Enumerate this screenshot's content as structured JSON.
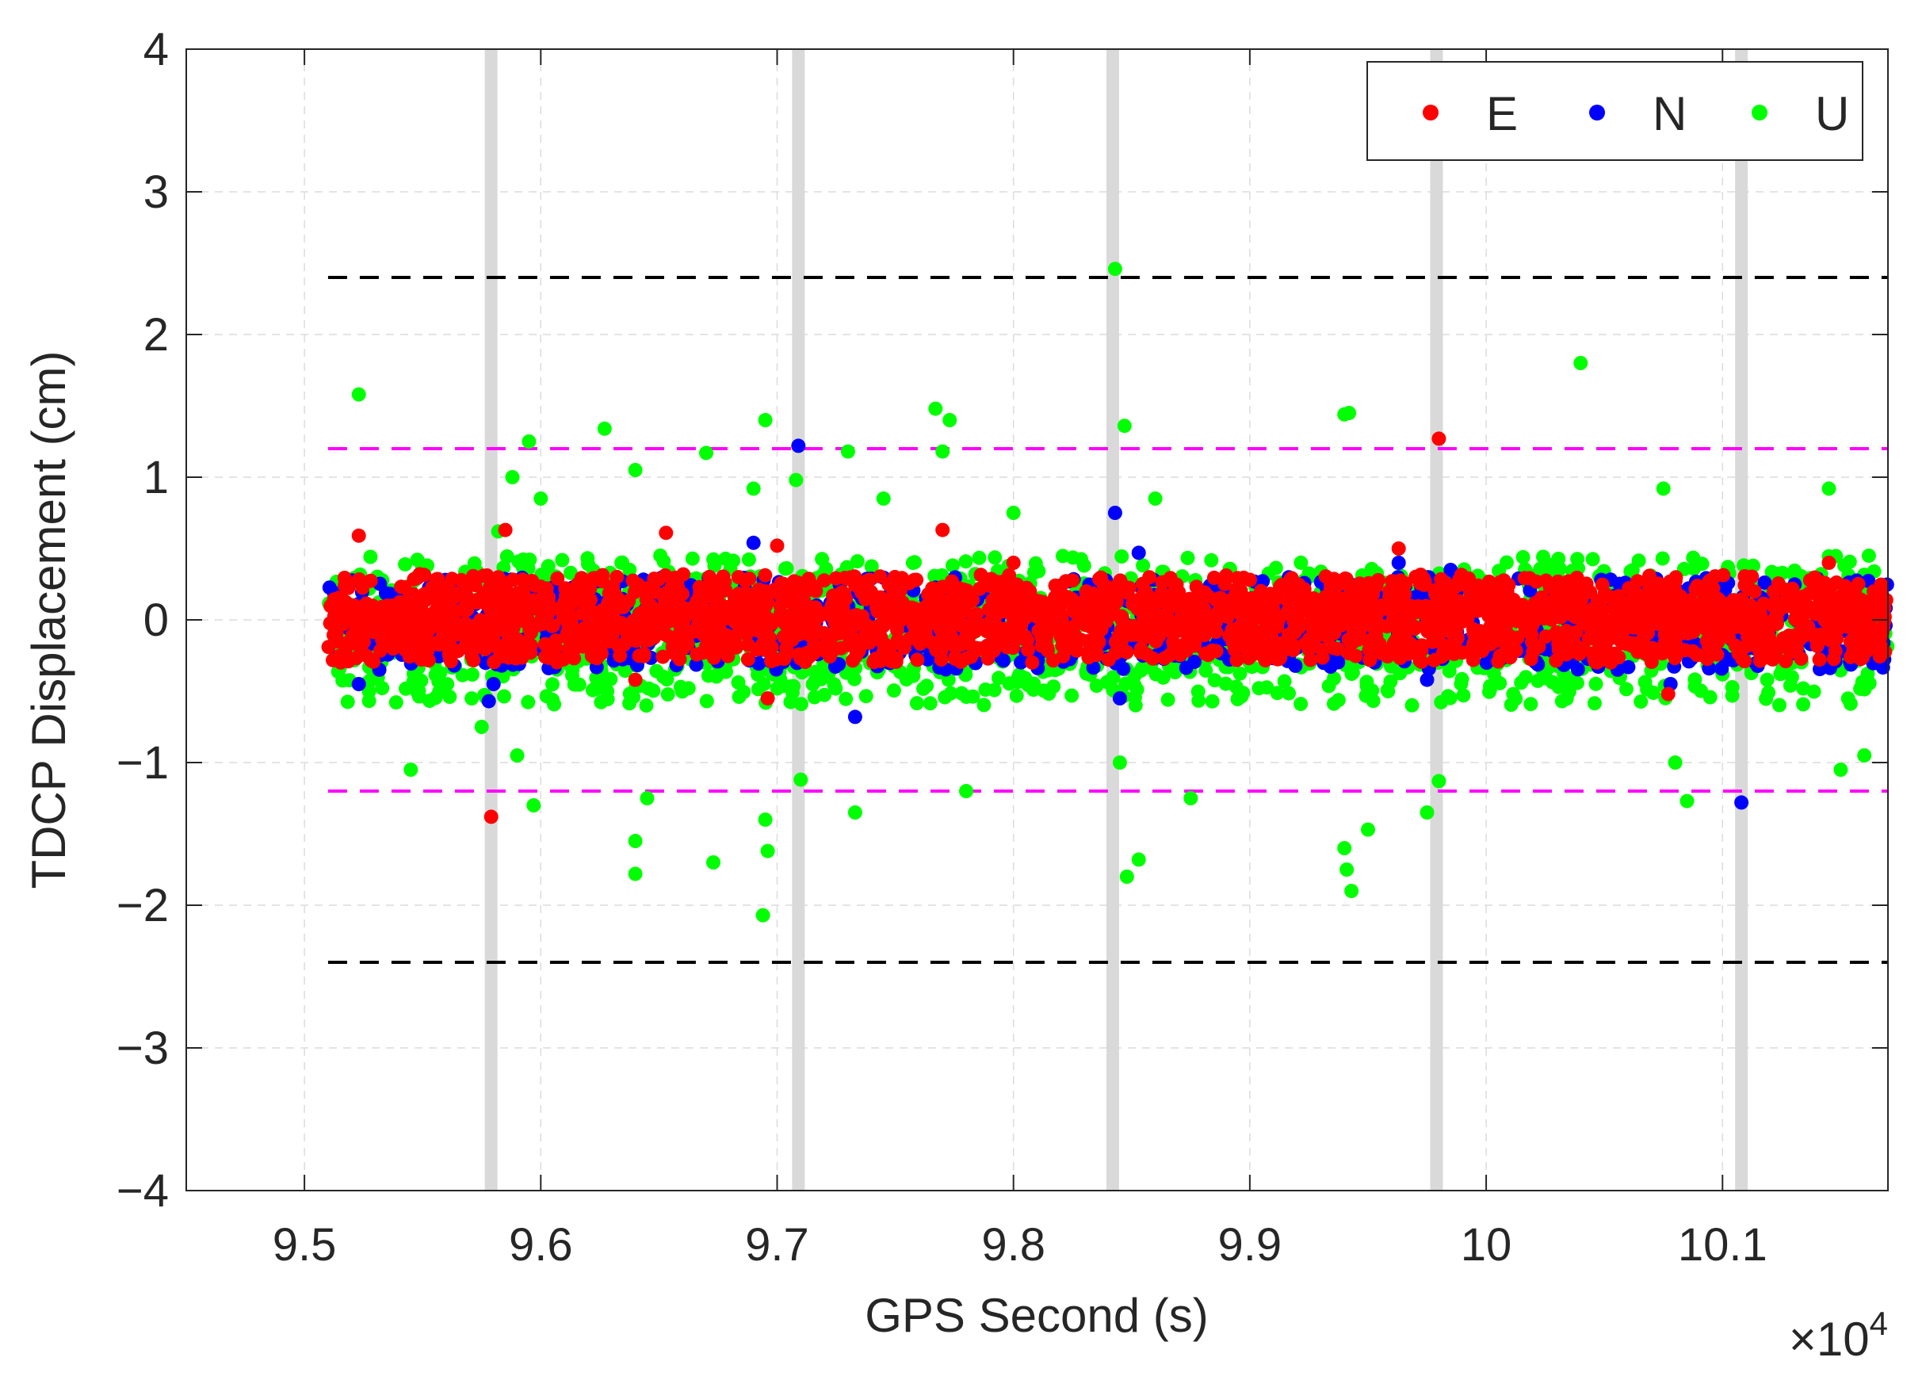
{
  "chart_data": {
    "type": "scatter",
    "title": "",
    "xlabel": "GPS Second (s)",
    "ylabel": "TDCP Displacement (cm)",
    "x_exponent_label": "×10",
    "x_exponent_power": "4",
    "x_scale_factor": 10000,
    "xlim": [
      9.45,
      10.17
    ],
    "ylim": [
      -4,
      4
    ],
    "x_ticks": [
      9.5,
      9.6,
      9.7,
      9.8,
      9.9,
      10,
      10.1
    ],
    "x_tick_labels": [
      "9.5",
      "9.6",
      "9.7",
      "9.8",
      "9.9",
      "10",
      "10.1"
    ],
    "y_ticks": [
      -4,
      -3,
      -2,
      -1,
      0,
      1,
      2,
      3,
      4
    ],
    "y_tick_labels": [
      "−4",
      "−3",
      "−2",
      "−1",
      "0",
      "1",
      "2",
      "3",
      "4"
    ],
    "grid": true,
    "legend_position": "top-right",
    "x_range_of_data": [
      9.51,
      10.17
    ],
    "series": [
      {
        "name": "U",
        "color": "#00ff00",
        "typical_band": [
          -0.6,
          0.45
        ],
        "outliers": [
          [
            9.523,
            1.58
          ],
          [
            9.545,
            -1.05
          ],
          [
            9.575,
            -0.75
          ],
          [
            9.582,
            0.62
          ],
          [
            9.588,
            1.0
          ],
          [
            9.59,
            -0.95
          ],
          [
            9.595,
            1.25
          ],
          [
            9.597,
            -1.3
          ],
          [
            9.6,
            0.85
          ],
          [
            9.627,
            1.34
          ],
          [
            9.64,
            1.05
          ],
          [
            9.64,
            -1.55
          ],
          [
            9.64,
            -1.78
          ],
          [
            9.645,
            -1.25
          ],
          [
            9.67,
            1.17
          ],
          [
            9.673,
            -1.7
          ],
          [
            9.69,
            0.92
          ],
          [
            9.695,
            1.4
          ],
          [
            9.695,
            -1.4
          ],
          [
            9.696,
            -1.62
          ],
          [
            9.694,
            -2.07
          ],
          [
            9.708,
            0.98
          ],
          [
            9.71,
            -1.12
          ],
          [
            9.73,
            1.18
          ],
          [
            9.733,
            -1.35
          ],
          [
            9.745,
            0.85
          ],
          [
            9.767,
            1.48
          ],
          [
            9.77,
            1.18
          ],
          [
            9.773,
            1.4
          ],
          [
            9.78,
            -1.2
          ],
          [
            9.8,
            0.75
          ],
          [
            9.843,
            2.46
          ],
          [
            9.845,
            -1.0
          ],
          [
            9.847,
            1.36
          ],
          [
            9.848,
            -1.8
          ],
          [
            9.853,
            -1.68
          ],
          [
            9.86,
            0.85
          ],
          [
            9.875,
            -1.25
          ],
          [
            9.94,
            1.44
          ],
          [
            9.942,
            1.45
          ],
          [
            9.94,
            -1.6
          ],
          [
            9.941,
            -1.75
          ],
          [
            9.943,
            -1.9
          ],
          [
            9.95,
            -1.47
          ],
          [
            9.975,
            -1.35
          ],
          [
            9.98,
            -1.13
          ],
          [
            10.04,
            1.8
          ],
          [
            10.075,
            0.92
          ],
          [
            10.08,
            -1.0
          ],
          [
            10.085,
            -1.27
          ],
          [
            10.145,
            0.92
          ],
          [
            10.15,
            -1.05
          ],
          [
            10.16,
            -0.95
          ]
        ]
      },
      {
        "name": "N",
        "color": "#0000ff",
        "typical_band": [
          -0.35,
          0.3
        ],
        "outliers": [
          [
            9.709,
            1.22
          ],
          [
            9.843,
            0.75
          ],
          [
            9.853,
            0.47
          ],
          [
            9.845,
            -0.55
          ],
          [
            9.733,
            -0.68
          ],
          [
            9.69,
            0.54
          ],
          [
            9.578,
            -0.57
          ],
          [
            9.58,
            -0.45
          ],
          [
            9.963,
            0.4
          ],
          [
            9.975,
            -0.42
          ],
          [
            9.985,
            0.35
          ],
          [
            10.108,
            -1.28
          ],
          [
            10.078,
            -0.45
          ],
          [
            9.523,
            -0.45
          ]
        ]
      },
      {
        "name": "E",
        "color": "#ff0000",
        "typical_band": [
          -0.3,
          0.32
        ],
        "outliers": [
          [
            9.579,
            -1.38
          ],
          [
            9.523,
            0.59
          ],
          [
            9.585,
            0.63
          ],
          [
            9.653,
            0.61
          ],
          [
            9.77,
            0.63
          ],
          [
            9.98,
            1.27
          ],
          [
            9.963,
            0.5
          ],
          [
            10.145,
            0.4
          ],
          [
            9.696,
            -0.55
          ],
          [
            9.64,
            -0.42
          ],
          [
            10.077,
            -0.52
          ],
          [
            9.8,
            0.4
          ],
          [
            9.7,
            0.52
          ]
        ]
      }
    ],
    "reference_lines": [
      {
        "color": "#000000",
        "style": "dashed",
        "y": 2.4
      },
      {
        "color": "#000000",
        "style": "dashed",
        "y": -2.4
      },
      {
        "color": "#ff00ff",
        "style": "dashed",
        "y": 1.2
      },
      {
        "color": "#ff00ff",
        "style": "dashed",
        "y": -1.2
      }
    ],
    "vertical_bands": {
      "color": "#d9d9d9",
      "x": [
        9.579,
        9.709,
        9.842,
        9.979,
        10.108
      ]
    }
  }
}
